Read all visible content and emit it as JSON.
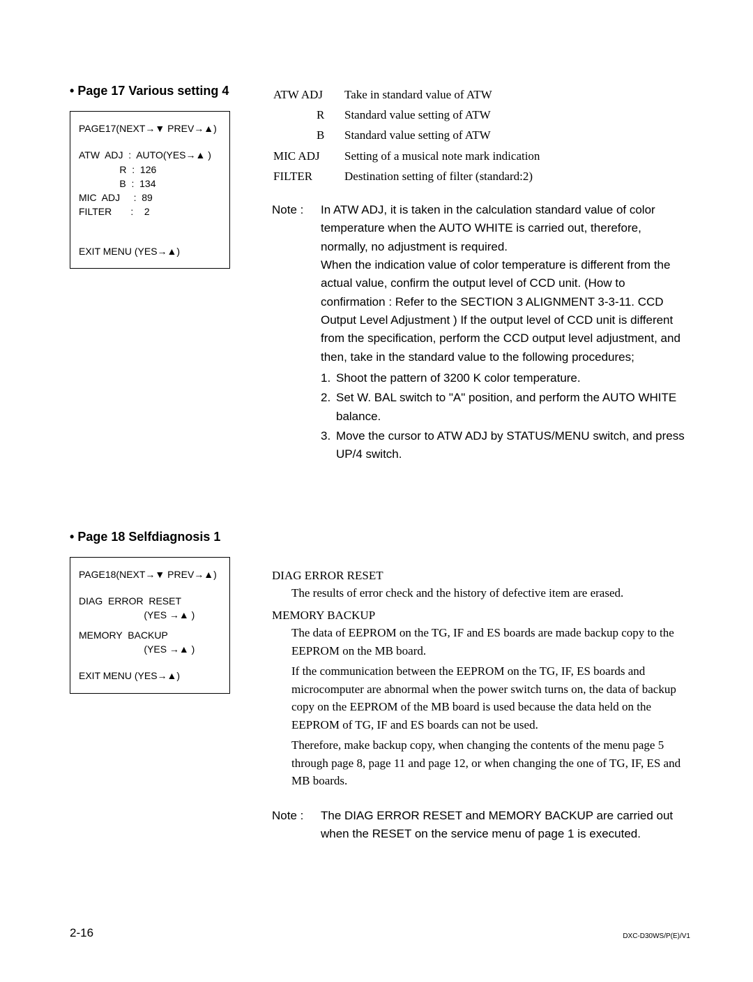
{
  "section1": {
    "title": "Page 17  Various setting 4",
    "menu": {
      "header": "PAGE17(NEXT→▼ PREV→▲)",
      "lines": [
        "ATW  ADJ  :  AUTO(YES→▲ )",
        "               R  :  126",
        "               B  :  134",
        "MIC  ADJ     :  89",
        "FILTER       :    2"
      ],
      "exit": "EXIT MENU (YES→▲)"
    },
    "definitions": [
      {
        "label": "ATW ADJ",
        "text": "Take in standard value of ATW",
        "indent": false
      },
      {
        "label": "R",
        "text": "Standard value setting of ATW",
        "indent": true
      },
      {
        "label": "B",
        "text": "Standard value setting of ATW",
        "indent": true
      },
      {
        "label": "MIC ADJ",
        "text": "Setting of a musical note mark indication",
        "indent": false
      },
      {
        "label": "FILTER",
        "text": "Destination setting of filter (standard:2)",
        "indent": false
      }
    ],
    "note": {
      "key": "Note :",
      "body_lines": [
        "In ATW ADJ, it is taken in the calculation standard value of color temperature when the AUTO WHITE is carried out, therefore, normally, no adjustment is required.",
        "When the indication value of color temperature is different from the actual value, confirm the output level of CCD unit. (How to confirmation : Refer to the SECTION 3 ALIGNMENT  3-3-11. CCD Output Level Adjustment ) If the output level of CCD unit is different from the specification, perform the CCD output level adjustment, and then, take in the standard value to the following procedures;"
      ],
      "steps": [
        {
          "num": "1.",
          "text": "Shoot the pattern of 3200 K color temperature."
        },
        {
          "num": "2.",
          "text": "Set W. BAL switch to \"A\" position, and perform the AUTO WHITE balance."
        },
        {
          "num": "3.",
          "text": "Move the cursor to  ATW ADJ  by STATUS/MENU switch, and press UP/4  switch."
        }
      ]
    }
  },
  "section2": {
    "title": "Page 18  Selfdiagnosis 1",
    "menu": {
      "header": "PAGE18(NEXT→▼ PREV→▲)",
      "lines": [
        "DIAG  ERROR  RESET",
        "                        (YES →▲ )",
        "",
        "MEMORY  BACKUP",
        "                        (YES →▲ )"
      ],
      "exit": "EXIT MENU (YES→▲)"
    },
    "items": [
      {
        "heading": "DIAG  ERROR  RESET",
        "body": "The results of error check and the history of defective item are erased."
      },
      {
        "heading": "MEMORY  BACKUP",
        "body": "The data of EEPROM on the TG, IF and ES boards are made backup copy to the EEPROM on the MB board.\nIf the communication between the EEPROM on the TG, IF, ES boards and microcomputer are abnormal when the power switch turns on, the data of backup copy on the EEPROM of the MB board is used because the data held on the EEPROM of TG, IF and ES boards can not be used.\nTherefore, make backup copy, when changing the contents of the menu page 5 through page 8, page 11 and page 12, or when changing the one of TG, IF, ES and MB boards."
      }
    ],
    "note": {
      "key": "Note :",
      "text": "The DIAG  ERROR RESET and MEMORY BACKUP are carried out when the RESET on the service menu of page 1 is executed."
    }
  },
  "footer": {
    "left": "2-16",
    "right": "DXC-D30WS/P(E)/V1"
  }
}
